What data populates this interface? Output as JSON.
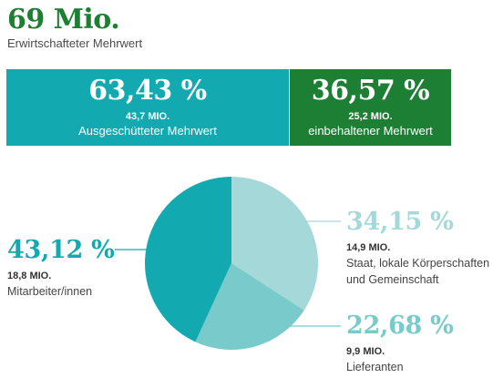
{
  "header": {
    "total_value": "69 Mio.",
    "total_label": "Erwirtschafteter Mehrwert"
  },
  "split": {
    "distributed": {
      "percent": "63,43 %",
      "amount": "43,7 MIO.",
      "label": "Ausgeschütteter Mehrwert",
      "color": "#12a9b0"
    },
    "retained": {
      "percent": "36,57 %",
      "amount": "25,2 MIO.",
      "label": "einbehaltener Mehrwert",
      "color": "#1c7f33"
    }
  },
  "chart_data": {
    "type": "pie",
    "slices": [
      {
        "percent_label": "34,15 %",
        "value": 34.15,
        "amount": "14,9 MIO.",
        "label_line1": "Staat, lokale Körperschaften",
        "label_line2": "und Gemeinschaft",
        "color": "#a4d8d9"
      },
      {
        "percent_label": "22,68 %",
        "value": 22.68,
        "amount": "9,9 MIO.",
        "label_line1": "Lieferanten",
        "color": "#79caca"
      },
      {
        "percent_label": "43,12 %",
        "value": 43.12,
        "amount": "18,8 MIO.",
        "label_line1": "Mitarbeiter/innen",
        "color": "#12a9b0"
      }
    ]
  }
}
